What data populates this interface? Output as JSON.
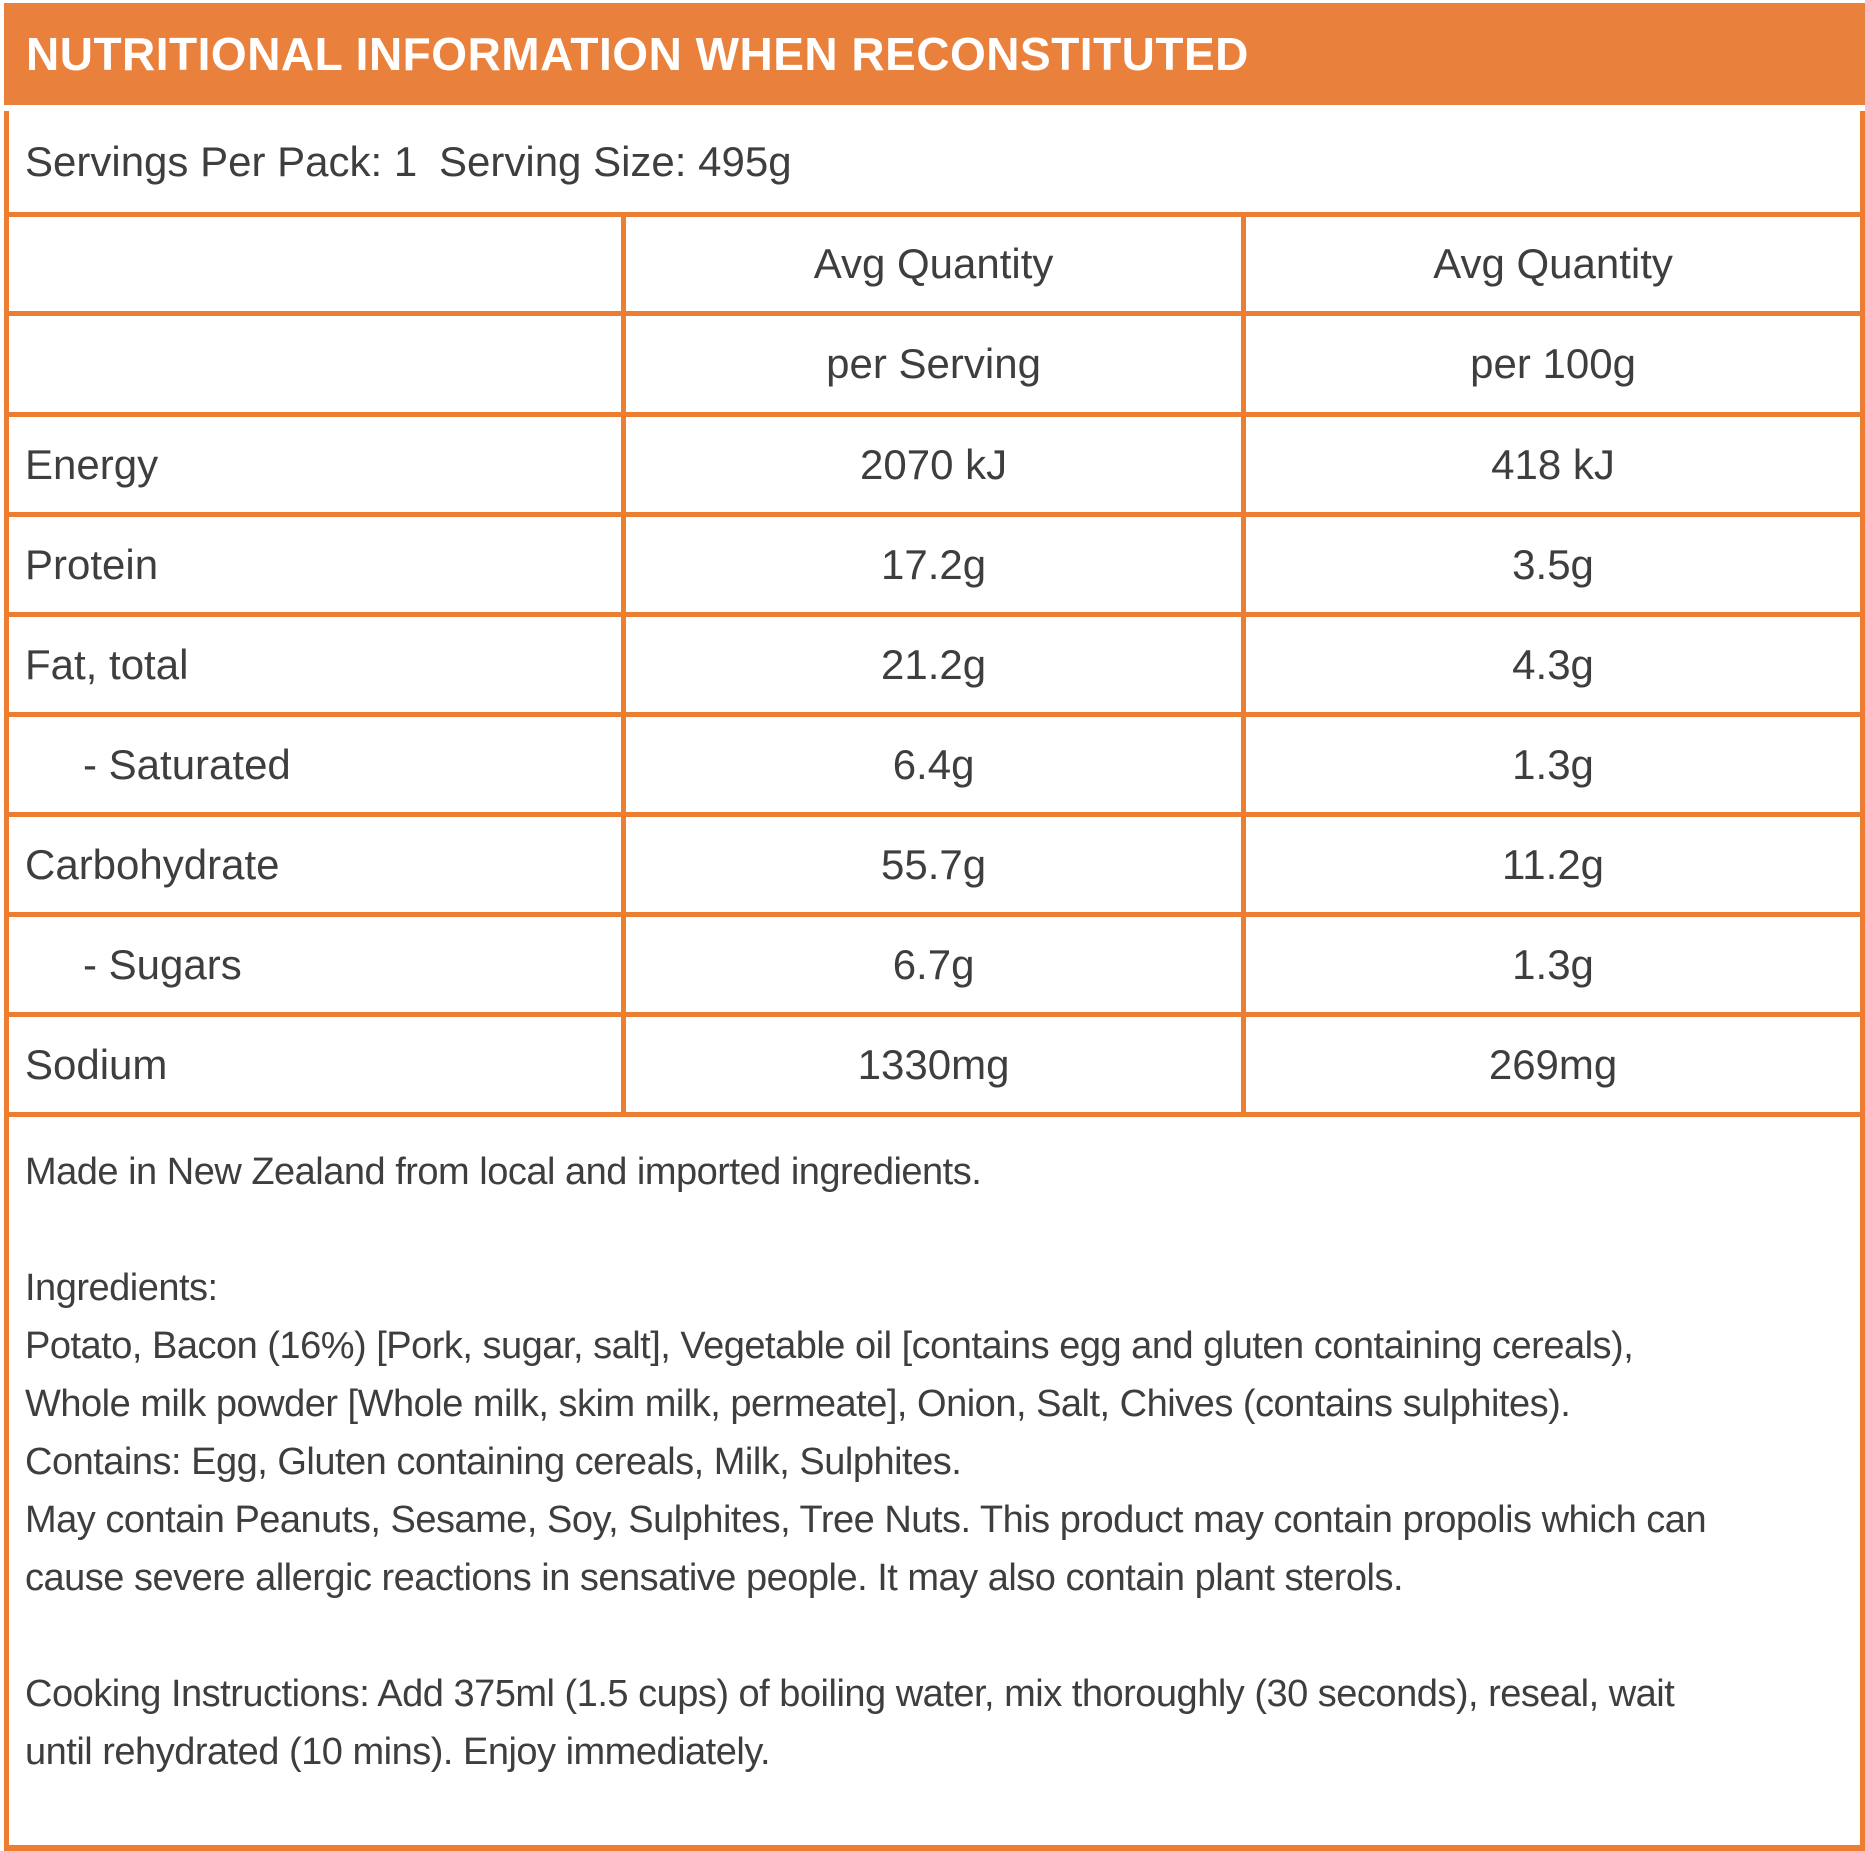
{
  "colors": {
    "accent_orange": "#ED7D31",
    "header_bar_orange": "#E9813D",
    "text_dark": "#3E3E3E",
    "title_white": "#FFFFFF"
  },
  "header": {
    "title": "NUTRITIONAL INFORMATION WHEN RECONSTITUTED"
  },
  "servings": {
    "per_pack_label": "Servings Per Pack: 1",
    "size_label": "Serving Size: 495g"
  },
  "table": {
    "column_headers": {
      "per_serving": [
        "Avg Quantity",
        "per Serving"
      ],
      "per_100g": [
        "Avg Quantity",
        "per 100g"
      ]
    },
    "rows": [
      {
        "label": "Energy",
        "per_serving": "2070 kJ",
        "per_100g": "418 kJ"
      },
      {
        "label": "Protein",
        "per_serving": "17.2g",
        "per_100g": "3.5g"
      },
      {
        "label": "Fat, total",
        "per_serving": "21.2g",
        "per_100g": "4.3g"
      },
      {
        "label": "- Saturated",
        "per_serving": "6.4g",
        "per_100g": "1.3g"
      },
      {
        "label": "Carbohydrate",
        "per_serving": "55.7g",
        "per_100g": "11.2g"
      },
      {
        "label": "- Sugars",
        "per_serving": "6.7g",
        "per_100g": "1.3g"
      },
      {
        "label": "Sodium",
        "per_serving": "1330mg",
        "per_100g": "269mg"
      }
    ]
  },
  "footer": {
    "paragraphs": [
      [
        "Made in New Zealand from local and imported ingredients."
      ],
      [
        "Ingredients:",
        "Potato, Bacon (16%) [Pork, sugar, salt], Vegetable oil [contains egg and gluten containing cereals),",
        "Whole milk powder [Whole milk, skim milk, permeate], Onion, Salt, Chives (contains sulphites).",
        "Contains: Egg, Gluten containing cereals, Milk, Sulphites.",
        "May contain Peanuts, Sesame, Soy, Sulphites, Tree Nuts. This product may contain propolis which can",
        "cause severe allergic reactions in sensative people. It may also contain plant sterols."
      ],
      [
        "Cooking Instructions: Add 375ml (1.5 cups) of boiling water, mix thoroughly (30 seconds), reseal, wait",
        "until rehydrated (10 mins). Enjoy immediately."
      ]
    ]
  }
}
